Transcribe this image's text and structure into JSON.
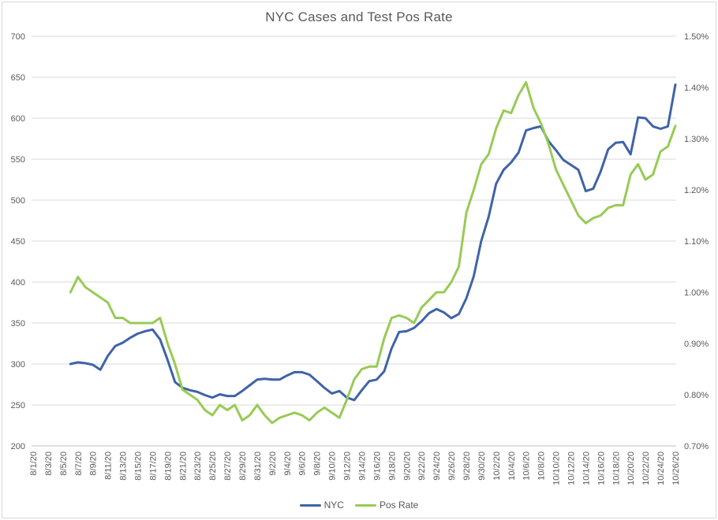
{
  "title": "NYC Cases and Test Pos Rate",
  "colors": {
    "nyc_line": "#3F63A8",
    "pos_rate_line": "#97CB55",
    "gridline": "#D9D9D9",
    "axis_line": "#BFBFBF",
    "axis_text": "#595959",
    "title_text": "#595959",
    "background": "#FFFFFF"
  },
  "left_axis": {
    "ticks": [
      "700",
      "650",
      "600",
      "550",
      "500",
      "450",
      "400",
      "350",
      "300",
      "250",
      "200"
    ]
  },
  "right_axis": {
    "ticks": [
      "1.50%",
      "1.40%",
      "1.30%",
      "1.20%",
      "1.10%",
      "1.00%",
      "0.90%",
      "0.80%",
      "0.70%"
    ]
  },
  "x_axis": {
    "tick_labels": [
      "8/1/20",
      "8/3/20",
      "8/5/20",
      "8/7/20",
      "8/9/20",
      "8/11/20",
      "8/13/20",
      "8/15/20",
      "8/17/20",
      "8/19/20",
      "8/21/20",
      "8/23/20",
      "8/25/20",
      "8/27/20",
      "8/29/20",
      "8/31/20",
      "9/2/20",
      "9/4/20",
      "9/6/20",
      "9/8/20",
      "9/10/20",
      "9/12/20",
      "9/14/20",
      "9/16/20",
      "9/18/20",
      "9/20/20",
      "9/22/20",
      "9/24/20",
      "9/26/20",
      "9/28/20",
      "9/30/20",
      "10/2/20",
      "10/4/20",
      "10/6/20",
      "10/8/20",
      "10/10/20",
      "10/12/20",
      "10/14/20",
      "10/16/20",
      "10/18/20",
      "10/20/20",
      "10/22/20",
      "10/24/20",
      "10/26/20"
    ],
    "tick_label_step_days": 2,
    "axis_start_date": "8/1/20",
    "axis_end_date": "10/26/20"
  },
  "legend": [
    {
      "label": "NYC",
      "color_key": "nyc_line"
    },
    {
      "label": "Pos Rate",
      "color_key": "pos_rate_line"
    }
  ],
  "chart_data": {
    "type": "line",
    "title": "NYC Cases and Test Pos Rate",
    "grid": "horizontal",
    "legend_position": "bottom",
    "left_ylim": [
      200,
      700
    ],
    "right_ylim": [
      0.7,
      1.5
    ],
    "x": [
      "8/6/20",
      "8/7/20",
      "8/8/20",
      "8/9/20",
      "8/10/20",
      "8/11/20",
      "8/12/20",
      "8/13/20",
      "8/14/20",
      "8/15/20",
      "8/16/20",
      "8/17/20",
      "8/18/20",
      "8/19/20",
      "8/20/20",
      "8/21/20",
      "8/22/20",
      "8/23/20",
      "8/24/20",
      "8/25/20",
      "8/26/20",
      "8/27/20",
      "8/28/20",
      "8/29/20",
      "8/30/20",
      "8/31/20",
      "9/1/20",
      "9/2/20",
      "9/3/20",
      "9/4/20",
      "9/5/20",
      "9/6/20",
      "9/7/20",
      "9/8/20",
      "9/9/20",
      "9/10/20",
      "9/11/20",
      "9/12/20",
      "9/13/20",
      "9/14/20",
      "9/15/20",
      "9/16/20",
      "9/17/20",
      "9/18/20",
      "9/19/20",
      "9/20/20",
      "9/21/20",
      "9/22/20",
      "9/23/20",
      "9/24/20",
      "9/25/20",
      "9/26/20",
      "9/27/20",
      "9/28/20",
      "9/29/20",
      "9/30/20",
      "10/1/20",
      "10/2/20",
      "10/3/20",
      "10/4/20",
      "10/5/20",
      "10/6/20",
      "10/7/20",
      "10/8/20",
      "10/9/20",
      "10/10/20",
      "10/11/20",
      "10/12/20",
      "10/13/20",
      "10/14/20",
      "10/15/20",
      "10/16/20",
      "10/17/20",
      "10/18/20",
      "10/19/20",
      "10/20/20",
      "10/21/20",
      "10/22/20",
      "10/23/20",
      "10/24/20",
      "10/25/20",
      "10/26/20"
    ],
    "series": [
      {
        "name": "NYC",
        "axis": "left",
        "values": [
          300,
          302,
          301,
          299,
          293,
          310,
          322,
          326,
          332,
          337,
          340,
          342,
          330,
          305,
          278,
          271,
          268,
          266,
          262,
          259,
          263,
          261,
          261,
          267,
          274,
          281,
          282,
          281,
          281,
          286,
          290,
          290,
          287,
          279,
          271,
          264,
          267,
          259,
          256,
          268,
          279,
          281,
          291,
          319,
          339,
          340,
          344,
          352,
          362,
          367,
          363,
          356,
          361,
          380,
          407,
          450,
          480,
          520,
          537,
          546,
          558,
          585,
          588,
          590,
          572,
          561,
          549,
          543,
          537,
          511,
          514,
          535,
          562,
          570,
          571,
          556,
          601,
          600,
          590,
          587,
          590,
          641
        ]
      },
      {
        "name": "Pos Rate",
        "axis": "right",
        "values": [
          1.0,
          1.03,
          1.01,
          1.0,
          0.99,
          0.98,
          0.95,
          0.95,
          0.94,
          0.94,
          0.94,
          0.94,
          0.95,
          0.9,
          0.86,
          0.81,
          0.8,
          0.79,
          0.77,
          0.76,
          0.78,
          0.77,
          0.78,
          0.75,
          0.76,
          0.78,
          0.76,
          0.745,
          0.755,
          0.76,
          0.765,
          0.76,
          0.75,
          0.765,
          0.775,
          0.765,
          0.755,
          0.79,
          0.83,
          0.85,
          0.855,
          0.855,
          0.91,
          0.95,
          0.955,
          0.95,
          0.94,
          0.97,
          0.985,
          1.0,
          1.0,
          1.02,
          1.05,
          1.155,
          1.2,
          1.25,
          1.27,
          1.32,
          1.355,
          1.35,
          1.385,
          1.41,
          1.36,
          1.33,
          1.29,
          1.24,
          1.21,
          1.18,
          1.15,
          1.135,
          1.145,
          1.15,
          1.165,
          1.17,
          1.17,
          1.23,
          1.25,
          1.22,
          1.23,
          1.275,
          1.285,
          1.325
        ]
      }
    ],
    "data_start_day_offset_from_axis_start": 5
  }
}
